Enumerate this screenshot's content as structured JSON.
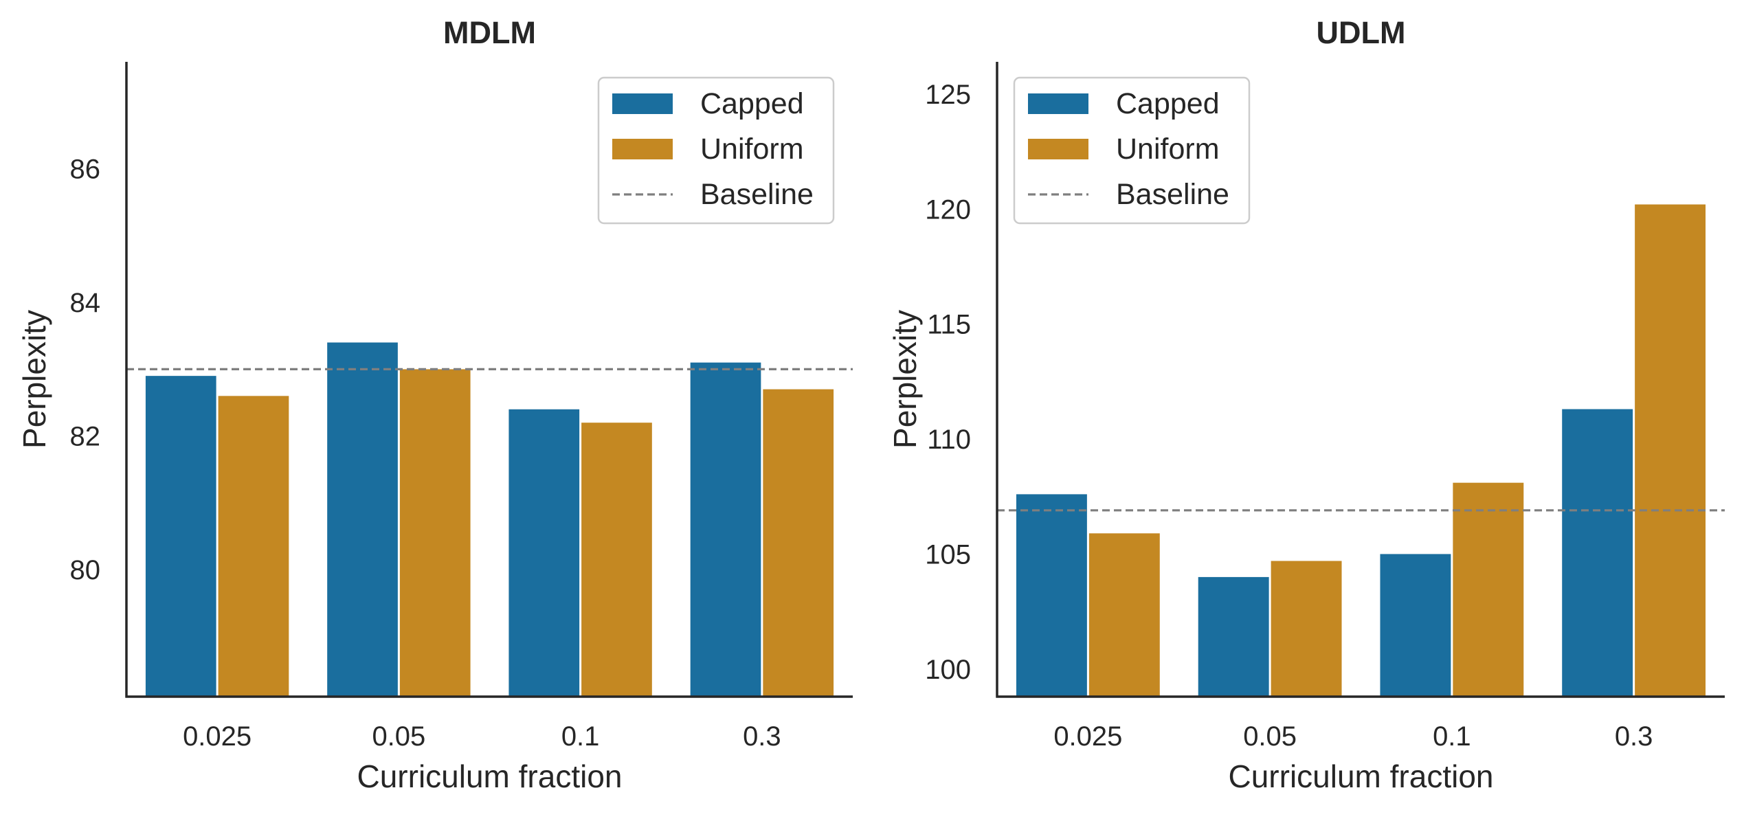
{
  "chart_data": [
    {
      "type": "bar",
      "title": "MDLM",
      "xlabel": "Curriculum fraction",
      "ylabel": "Perplexity",
      "categories": [
        "0.025",
        "0.05",
        "0.1",
        "0.3"
      ],
      "ylim": [
        78.1,
        87.6
      ],
      "yticks": [
        80,
        82,
        84,
        86
      ],
      "series": [
        {
          "name": "Capped",
          "color": "#1a6e9e",
          "values": [
            82.9,
            83.4,
            82.4,
            83.1
          ]
        },
        {
          "name": "Uniform",
          "color": "#c48822",
          "values": [
            82.6,
            83.0,
            82.2,
            82.7
          ]
        }
      ],
      "baseline": {
        "name": "Baseline",
        "value": 83.0,
        "color": "#7f7f7f"
      },
      "legend": "top-right",
      "grid": false
    },
    {
      "type": "bar",
      "title": "UDLM",
      "xlabel": "Curriculum fraction",
      "ylabel": "Perplexity",
      "categories": [
        "0.025",
        "0.05",
        "0.1",
        "0.3"
      ],
      "ylim": [
        98.8,
        126.4
      ],
      "yticks": [
        100,
        105,
        110,
        115,
        120,
        125
      ],
      "series": [
        {
          "name": "Capped",
          "color": "#1a6e9e",
          "values": [
            107.6,
            104.0,
            105.0,
            111.3
          ]
        },
        {
          "name": "Uniform",
          "color": "#c48822",
          "values": [
            105.9,
            104.7,
            108.1,
            120.2
          ]
        }
      ],
      "baseline": {
        "name": "Baseline",
        "value": 106.9,
        "color": "#7f7f7f"
      },
      "legend": "top-left",
      "grid": false
    }
  ]
}
